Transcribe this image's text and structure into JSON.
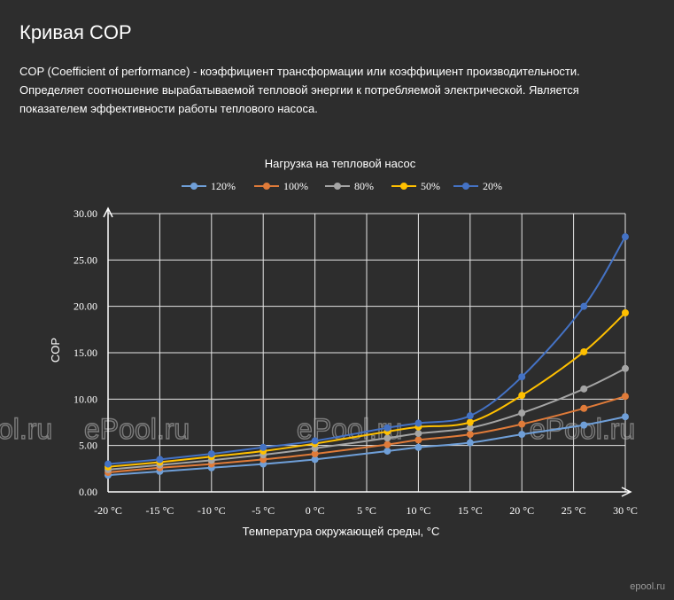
{
  "page": {
    "title": "Кривая COP",
    "description": "COP (Coefficient of performance) - коэффициент трансформации или коэффициент производительности. Определяет соотношение вырабатываемой тепловой энергии к потребляемой электрической. Является показателем эффективности работы теплового насоса."
  },
  "watermarks": {
    "main": "ePool.ru",
    "corner": "epool.ru"
  },
  "chart_data": {
    "type": "line",
    "title": "Нагрузка на тепловой насос",
    "xlabel": "Температура окружающей среды, °С",
    "ylabel": "COP",
    "x": [
      -20,
      -15,
      -10,
      -5,
      0,
      7,
      10,
      15,
      20,
      26,
      30
    ],
    "x_ticks": [
      -20,
      -15,
      -10,
      -5,
      0,
      5,
      10,
      15,
      20,
      25,
      30
    ],
    "x_tick_labels": [
      "-20 °C",
      "-15 °C",
      "-10 °C",
      "-5 °C",
      "0 °C",
      "5 °C",
      "10 °C",
      "15 °C",
      "20 °C",
      "25 °C",
      "30 °C"
    ],
    "y_ticks": [
      0,
      5,
      10,
      15,
      20,
      25,
      30
    ],
    "y_tick_labels": [
      "0.00",
      "5.00",
      "10.00",
      "15.00",
      "20.00",
      "25.00",
      "30.00"
    ],
    "xlim": [
      -20,
      30
    ],
    "ylim": [
      0,
      30
    ],
    "grid": true,
    "legend_position": "top-center",
    "series": [
      {
        "name": "120%",
        "color": "#6f9fd8",
        "values": [
          1.8,
          2.2,
          2.6,
          3.0,
          3.5,
          4.4,
          4.8,
          5.3,
          6.2,
          7.2,
          8.1
        ]
      },
      {
        "name": "100%",
        "color": "#e07b39",
        "values": [
          2.1,
          2.6,
          3.0,
          3.5,
          4.1,
          5.1,
          5.6,
          6.2,
          7.3,
          9.0,
          10.3
        ]
      },
      {
        "name": "80%",
        "color": "#a5a5a5",
        "values": [
          2.4,
          2.9,
          3.4,
          4.0,
          4.7,
          5.8,
          6.3,
          6.9,
          8.5,
          11.1,
          13.3
        ]
      },
      {
        "name": "50%",
        "color": "#ffc000",
        "values": [
          2.7,
          3.2,
          3.8,
          4.4,
          5.2,
          6.5,
          7.0,
          7.5,
          10.4,
          15.1,
          19.3
        ]
      },
      {
        "name": "20%",
        "color": "#4472c4",
        "values": [
          3.0,
          3.5,
          4.1,
          4.8,
          5.5,
          6.9,
          7.4,
          8.2,
          12.4,
          20.0,
          27.5
        ]
      }
    ]
  }
}
